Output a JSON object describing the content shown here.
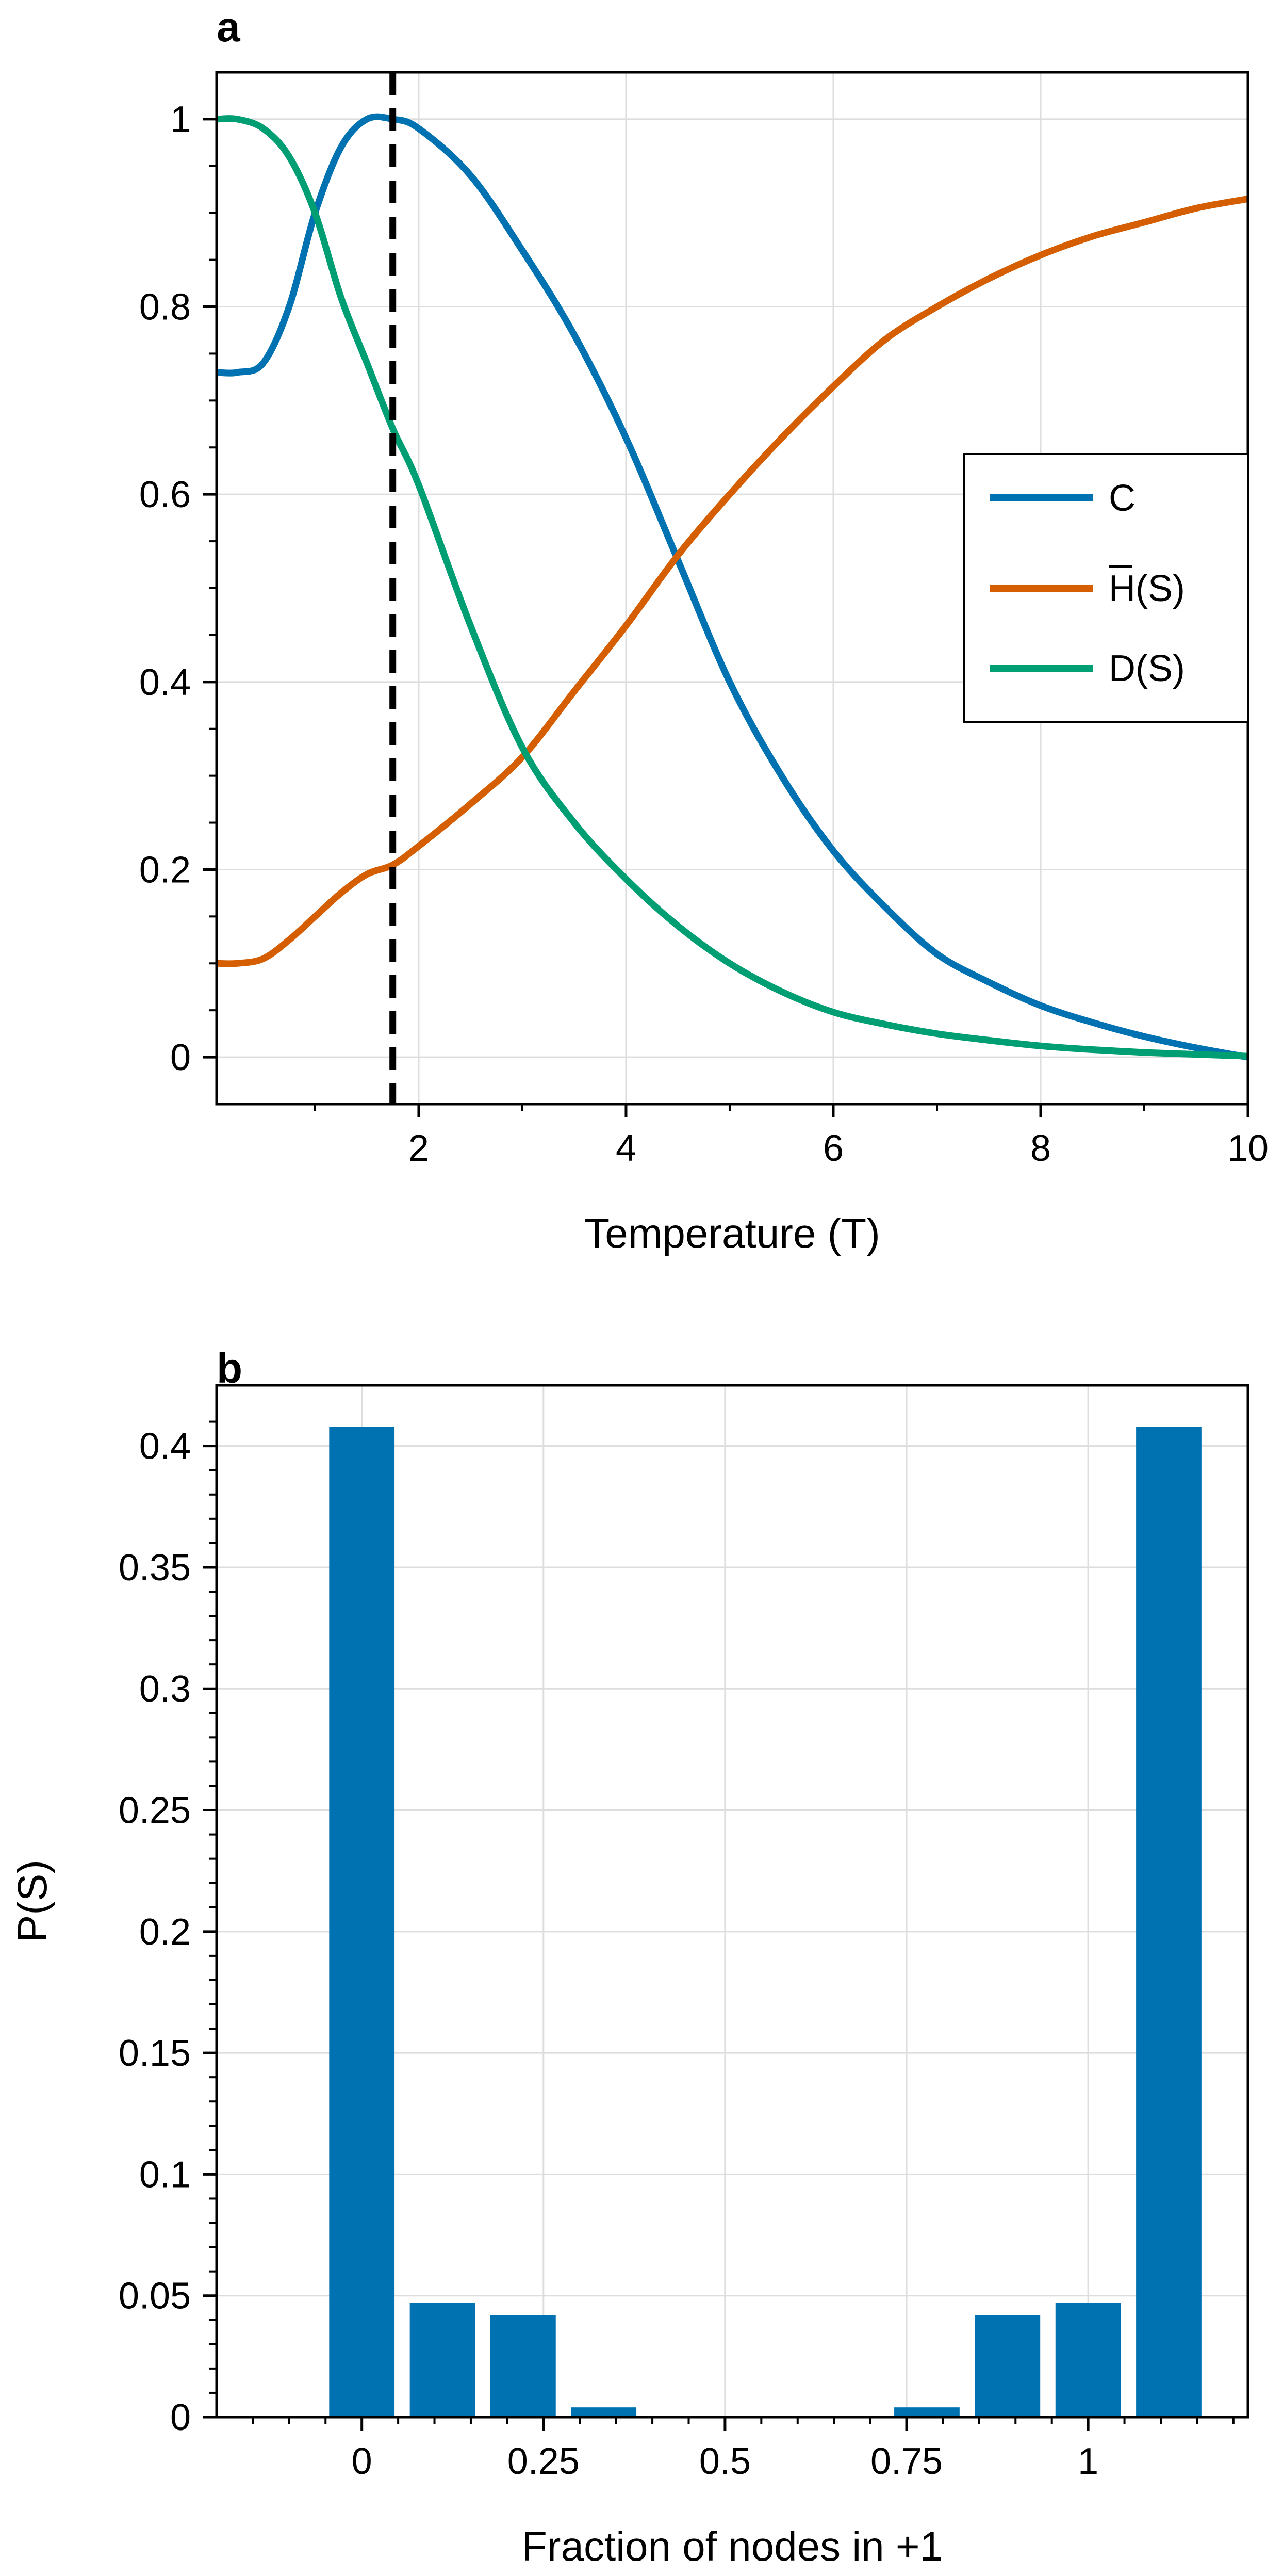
{
  "chart_data": [
    {
      "panel_label": "a",
      "type": "line",
      "xlabel": "Temperature (T)",
      "ylabel": "",
      "xlim": [
        0.05,
        10
      ],
      "ylim": [
        -0.05,
        1.05
      ],
      "xticks": [
        2,
        4,
        6,
        8,
        10
      ],
      "yticks": [
        0,
        0.2,
        0.4,
        0.6,
        0.8,
        1
      ],
      "xtick_labels": [
        "2",
        "4",
        "6",
        "8",
        "10"
      ],
      "ytick_labels": [
        "0",
        "0.2",
        "0.4",
        "0.6",
        "0.8",
        "1"
      ],
      "grid": true,
      "legend_position": "center-right",
      "vline": {
        "x": 1.75,
        "style": "dashed",
        "color": "#000000"
      },
      "x": [
        0.05,
        0.25,
        0.5,
        0.75,
        1.0,
        1.25,
        1.5,
        1.75,
        2.0,
        2.5,
        3.0,
        3.5,
        4.0,
        4.5,
        5.0,
        5.5,
        6.0,
        6.5,
        7.0,
        7.5,
        8.0,
        8.5,
        9.0,
        9.5,
        10.0
      ],
      "series": [
        {
          "name": "C",
          "color": "#0072B2",
          "values": [
            0.73,
            0.73,
            0.74,
            0.8,
            0.9,
            0.97,
            1.0,
            1.0,
            0.99,
            0.94,
            0.86,
            0.77,
            0.66,
            0.53,
            0.4,
            0.3,
            0.22,
            0.16,
            0.11,
            0.08,
            0.055,
            0.037,
            0.022,
            0.01,
            0.0
          ]
        },
        {
          "name": "H̄(S)",
          "label_main": "H",
          "label_suffix": "(S)",
          "color": "#D55E00",
          "values": [
            0.1,
            0.1,
            0.105,
            0.125,
            0.15,
            0.175,
            0.195,
            0.205,
            0.225,
            0.27,
            0.32,
            0.39,
            0.46,
            0.535,
            0.6,
            0.66,
            0.715,
            0.765,
            0.8,
            0.83,
            0.855,
            0.875,
            0.89,
            0.905,
            0.915
          ]
        },
        {
          "name": "D(S)",
          "color": "#009E73",
          "values": [
            1.0,
            1.0,
            0.99,
            0.96,
            0.9,
            0.81,
            0.74,
            0.67,
            0.61,
            0.46,
            0.33,
            0.25,
            0.19,
            0.14,
            0.1,
            0.07,
            0.048,
            0.035,
            0.025,
            0.018,
            0.012,
            0.008,
            0.005,
            0.003,
            0.001
          ]
        }
      ]
    },
    {
      "panel_label": "b",
      "type": "bar",
      "xlabel": "Fraction of nodes in +1",
      "ylabel": "P(S)",
      "color": "#0072B2",
      "xlim": [
        -0.2,
        1.22
      ],
      "ylim": [
        0,
        0.425
      ],
      "xticks": [
        0,
        0.25,
        0.5,
        0.75,
        1
      ],
      "yticks": [
        0,
        0.05,
        0.1,
        0.15,
        0.2,
        0.25,
        0.3,
        0.35,
        0.4
      ],
      "xtick_labels": [
        "0",
        "0.25",
        "0.5",
        "0.75",
        "1"
      ],
      "ytick_labels": [
        "0",
        "0.05",
        "0.1",
        "0.15",
        "0.2",
        "0.25",
        "0.3",
        "0.35",
        "0.4"
      ],
      "grid": true,
      "bar_width": 0.09,
      "categories": [
        0,
        0.111,
        0.222,
        0.333,
        0.444,
        0.556,
        0.667,
        0.778,
        0.889,
        1.0,
        1.111
      ],
      "values": [
        0.408,
        0.047,
        0.042,
        0.004,
        0.0,
        0.0,
        0.0,
        0.004,
        0.042,
        0.047,
        0.408
      ]
    }
  ]
}
